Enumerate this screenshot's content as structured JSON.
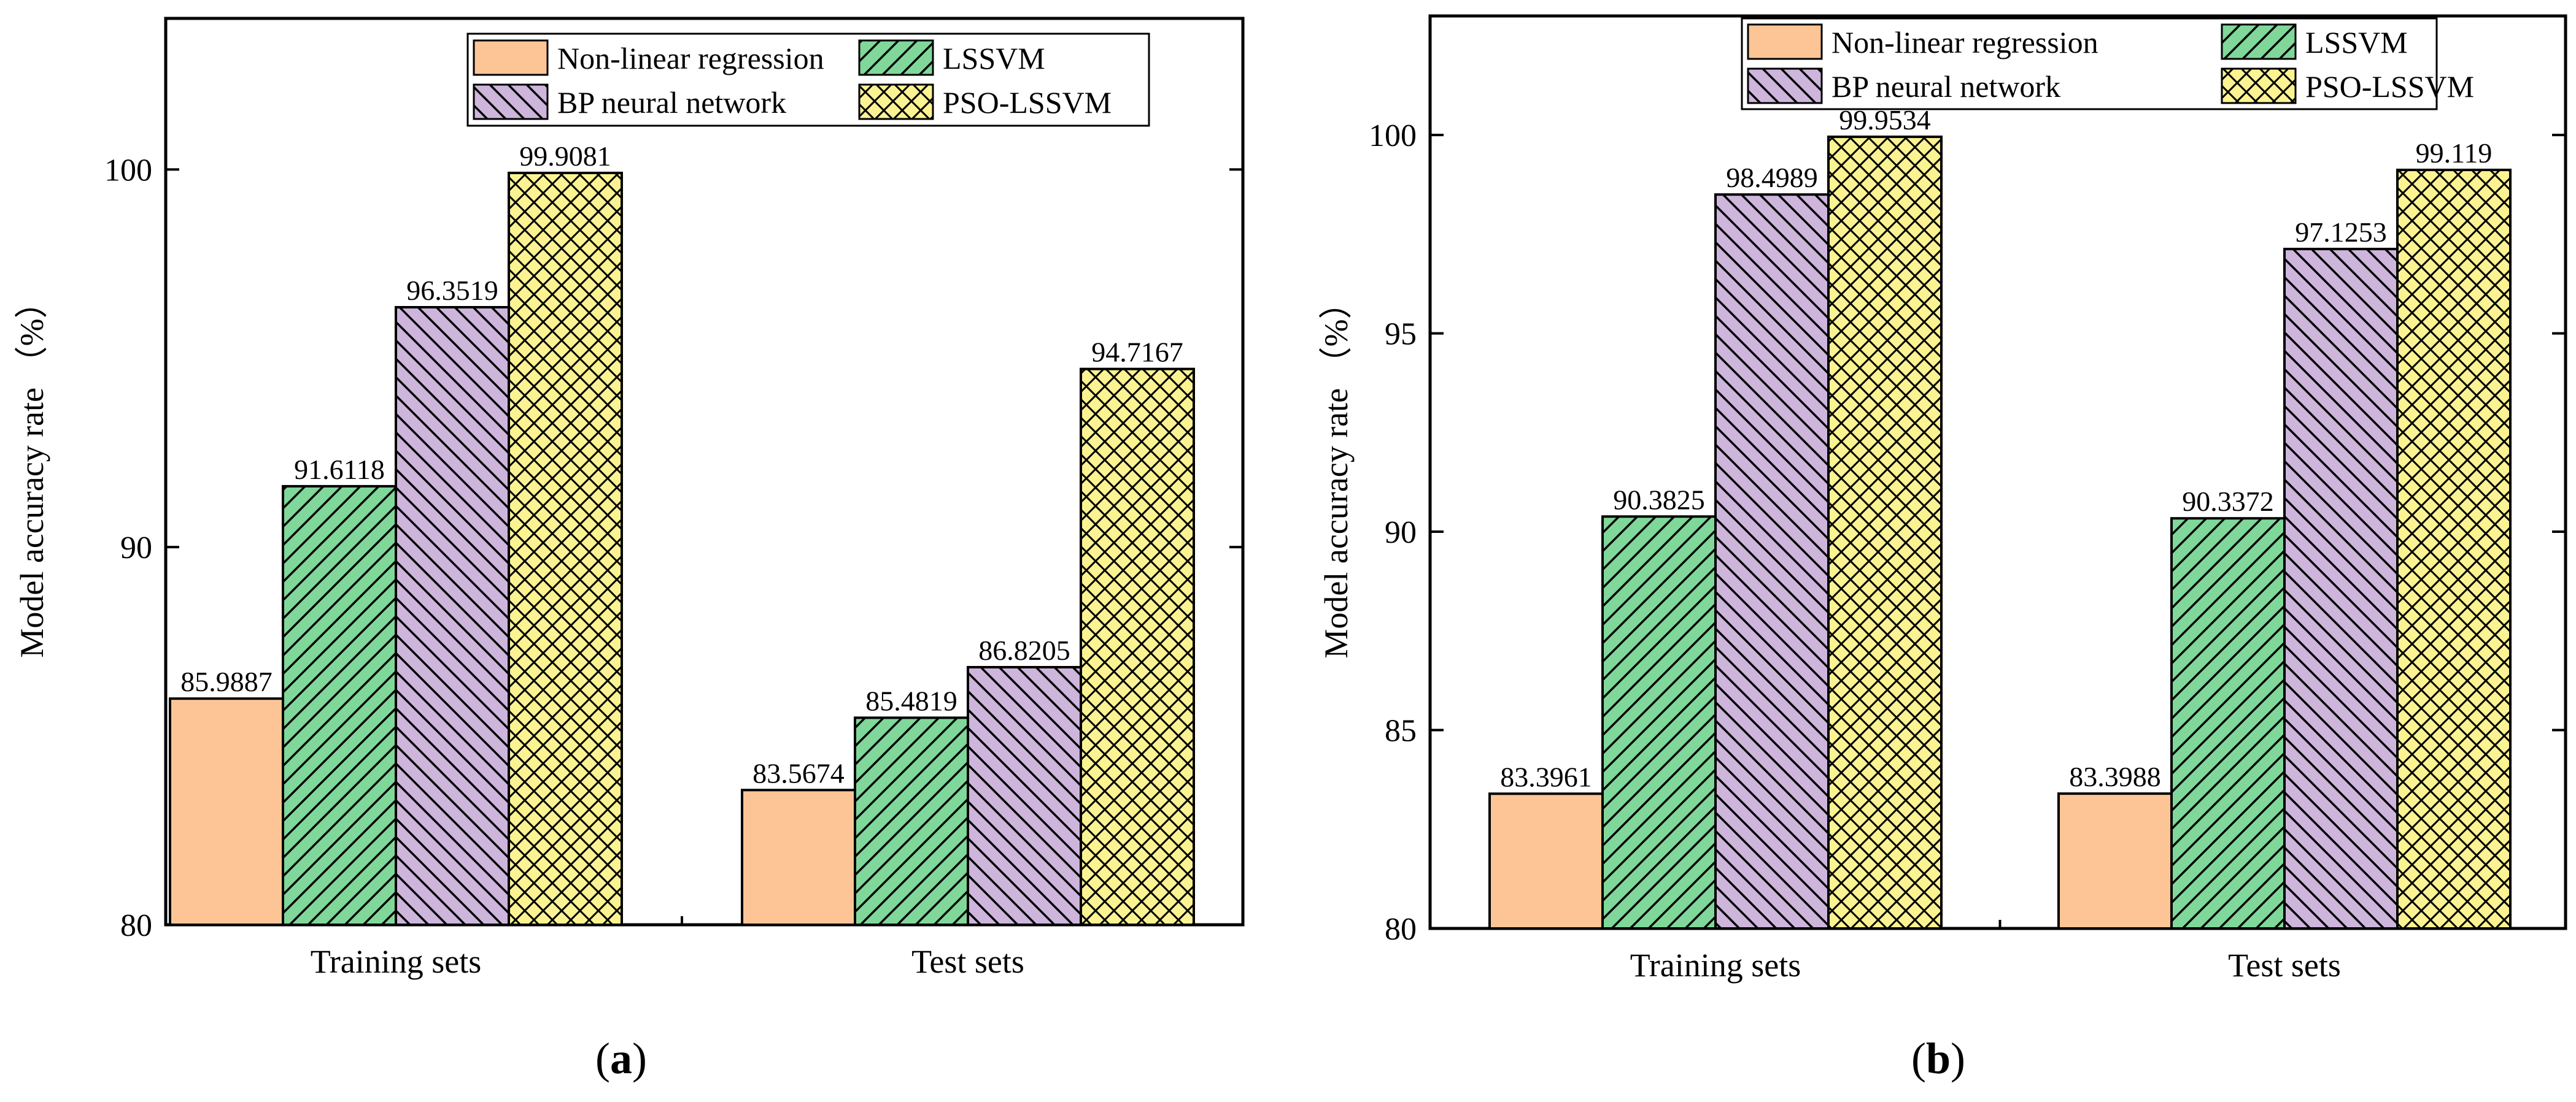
{
  "colors": {
    "nonlinear": "#FDC596",
    "lssvm": "#7FD89A",
    "bp": "#CDB5DC",
    "pso": "#FBF392"
  },
  "chart_data": [
    {
      "panel_label": "a",
      "type": "bar",
      "title": "",
      "xlabel": "",
      "ylabel": "Model accuracy rate （%）",
      "ylim": [
        80,
        104
      ],
      "yticks": [
        80,
        90,
        100
      ],
      "categories": [
        "Training sets",
        "Test sets"
      ],
      "legend": {
        "placement": "top-center",
        "entries": [
          "Non-linear regression",
          "LSSVM",
          "BP neural network",
          "PSO-LSSVM"
        ]
      },
      "series": [
        {
          "name": "Non-linear regression",
          "values": [
            85.9887,
            83.5674
          ],
          "labels": [
            "85.9887",
            "83.5674"
          ]
        },
        {
          "name": "LSSVM",
          "values": [
            91.6118,
            85.4819
          ],
          "labels": [
            "91.6118",
            "85.4819"
          ]
        },
        {
          "name": "BP neural network",
          "values": [
            96.3519,
            86.8205
          ],
          "labels": [
            "96.3519",
            "86.8205"
          ]
        },
        {
          "name": "PSO-LSSVM",
          "values": [
            99.9081,
            94.7167
          ],
          "labels": [
            "99.9081",
            "94.7167"
          ]
        }
      ]
    },
    {
      "panel_label": "b",
      "type": "bar",
      "title": "",
      "xlabel": "",
      "ylabel": "Model accuracy rate （%）",
      "ylim": [
        80,
        103
      ],
      "yticks": [
        80,
        85,
        90,
        95,
        100
      ],
      "categories": [
        "Training sets",
        "Test sets"
      ],
      "legend": {
        "placement": "top-center",
        "entries": [
          "Non-linear regression",
          "LSSVM",
          "BP neural network",
          "PSO-LSSVM"
        ]
      },
      "series": [
        {
          "name": "Non-linear regression",
          "values": [
            83.3961,
            83.3988
          ],
          "labels": [
            "83.3961",
            "83.3988"
          ]
        },
        {
          "name": "LSSVM",
          "values": [
            90.3825,
            90.3372
          ],
          "labels": [
            "90.3825",
            "90.3372"
          ]
        },
        {
          "name": "BP neural network",
          "values": [
            98.4989,
            97.1253
          ],
          "labels": [
            "98.4989",
            "97.1253"
          ]
        },
        {
          "name": "PSO-LSSVM",
          "values": [
            99.9534,
            99.119
          ],
          "labels": [
            "99.9534",
            "99.119"
          ]
        }
      ]
    }
  ]
}
